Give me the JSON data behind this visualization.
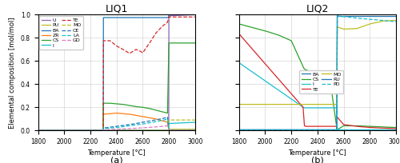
{
  "title1": "LIQ1",
  "title2": "LIQ2",
  "xlabel": "Temperature [°C]",
  "ylabel": "Elemental composition [mol/mol]",
  "xlim": [
    1800,
    3000
  ],
  "ylim": [
    0.0,
    1.0
  ],
  "label_a": "(a)",
  "label_b": "(b)",
  "liq1": {
    "U": {
      "color": "#9467bd",
      "ls": "-",
      "x": [
        1800,
        2799,
        2800,
        3000
      ],
      "y": [
        0.0,
        0.0,
        0.99,
        1.0
      ]
    },
    "PU": {
      "color": "#bcbd22",
      "ls": "-",
      "x": [
        1800,
        2799,
        2800,
        3000
      ],
      "y": [
        0.0,
        0.0,
        0.01,
        0.01
      ]
    },
    "BA": {
      "color": "#1f77b4",
      "ls": "-",
      "x": [
        1800,
        2299,
        2300,
        2799,
        2800,
        3000
      ],
      "y": [
        0.0,
        0.0,
        0.975,
        0.975,
        1.0,
        1.0
      ]
    },
    "ZR": {
      "color": "#ff7f0e",
      "ls": "-",
      "x": [
        1800,
        2299,
        2300,
        2400,
        2500,
        2600,
        2700,
        2790,
        2800,
        3000
      ],
      "y": [
        0.0,
        0.0,
        0.14,
        0.15,
        0.14,
        0.12,
        0.1,
        0.07,
        0.0,
        0.0
      ]
    },
    "CS": {
      "color": "#2ca02c",
      "ls": "-",
      "x": [
        1800,
        2299,
        2300,
        2350,
        2400,
        2450,
        2500,
        2550,
        2600,
        2650,
        2700,
        2750,
        2790,
        2800,
        3000
      ],
      "y": [
        0.0,
        0.0,
        0.235,
        0.235,
        0.23,
        0.225,
        0.215,
        0.205,
        0.2,
        0.19,
        0.175,
        0.16,
        0.15,
        0.755,
        0.755
      ]
    },
    "I": {
      "color": "#17becf",
      "ls": "-",
      "x": [
        1800,
        2799,
        2800,
        3000
      ],
      "y": [
        0.0,
        0.0,
        0.06,
        0.07
      ]
    },
    "TE": {
      "color": "#d62728",
      "ls": "--",
      "x": [
        1800,
        2299,
        2300,
        2350,
        2400,
        2450,
        2500,
        2550,
        2580,
        2600,
        2650,
        2700,
        2750,
        2790,
        2800,
        3000
      ],
      "y": [
        0.0,
        0.0,
        0.775,
        0.775,
        0.73,
        0.7,
        0.665,
        0.7,
        0.685,
        0.67,
        0.75,
        0.84,
        0.9,
        0.935,
        0.98,
        0.98
      ]
    },
    "MO": {
      "color": "#bcbd22",
      "ls": "--",
      "x": [
        1800,
        2799,
        2800,
        3000
      ],
      "y": [
        0.0,
        0.0,
        0.09,
        0.09
      ]
    },
    "CE": {
      "color": "#1f77b4",
      "ls": "--",
      "x": [
        1800,
        2299,
        2300,
        2400,
        2500,
        2600,
        2700,
        2780,
        2790,
        2800,
        3000
      ],
      "y": [
        0.0,
        0.0,
        0.02,
        0.035,
        0.05,
        0.07,
        0.09,
        0.11,
        0.115,
        0.0,
        0.0
      ]
    },
    "LA": {
      "color": "#17becf",
      "ls": "--",
      "x": [
        1800,
        2299,
        2300,
        2400,
        2500,
        2600,
        2700,
        2780,
        2790,
        2800,
        3000
      ],
      "y": [
        0.0,
        0.0,
        0.015,
        0.025,
        0.04,
        0.055,
        0.075,
        0.095,
        0.1,
        0.0,
        0.0
      ]
    },
    "GD": {
      "color": "#e377c2",
      "ls": "--",
      "x": [
        1800,
        2299,
        2300,
        2400,
        2500,
        2600,
        2700,
        2780,
        2790,
        2800,
        3000
      ],
      "y": [
        0.0,
        0.0,
        0.005,
        0.01,
        0.015,
        0.022,
        0.03,
        0.038,
        0.04,
        0.0,
        0.0
      ]
    }
  },
  "liq2": {
    "BA": {
      "color": "#1f77b4",
      "ls": "-",
      "x": [
        1800,
        2549,
        2550,
        3000
      ],
      "y": [
        0.005,
        0.005,
        1.0,
        1.0
      ]
    },
    "CS": {
      "color": "#2ca02c",
      "ls": "-",
      "x": [
        1800,
        2000,
        2100,
        2200,
        2290,
        2300,
        2400,
        2500,
        2549,
        2550,
        2600,
        2700,
        2800,
        2900,
        3000
      ],
      "y": [
        0.92,
        0.86,
        0.825,
        0.775,
        0.55,
        0.53,
        0.48,
        0.405,
        0.005,
        0.005,
        0.04,
        0.04,
        0.035,
        0.03,
        0.025
      ]
    },
    "I": {
      "color": "#17becf",
      "ls": "-",
      "x": [
        1800,
        2290,
        2300,
        2549,
        2550,
        3000
      ],
      "y": [
        0.585,
        0.2,
        0.195,
        0.195,
        0.005,
        0.005
      ]
    },
    "TE": {
      "color": "#d62728",
      "ls": "-",
      "x": [
        1800,
        2290,
        2300,
        2310,
        2549,
        2550,
        2600,
        2700,
        2800,
        2900,
        3000
      ],
      "y": [
        0.835,
        0.2,
        0.04,
        0.035,
        0.035,
        0.115,
        0.05,
        0.035,
        0.025,
        0.02,
        0.015
      ]
    },
    "MO": {
      "color": "#bcbd22",
      "ls": "-",
      "x": [
        1800,
        2549,
        2550,
        2600,
        2700,
        2800,
        2900,
        3000
      ],
      "y": [
        0.225,
        0.225,
        0.895,
        0.875,
        0.88,
        0.92,
        0.945,
        0.95
      ]
    },
    "RU": {
      "color": "#1f77b4",
      "ls": "-",
      "x": [
        1800,
        2549,
        2550,
        3000
      ],
      "y": [
        0.005,
        0.005,
        0.985,
        0.985
      ]
    },
    "PD": {
      "color": "#17becf",
      "ls": "--",
      "x": [
        1800,
        2549,
        2550,
        2700,
        2800,
        2900,
        3000
      ],
      "y": [
        0.005,
        0.005,
        0.99,
        0.97,
        0.96,
        0.95,
        0.94
      ]
    }
  },
  "liq1_legend_order": [
    "U",
    "PU",
    "BA",
    "ZR",
    "CS",
    "I",
    "TE",
    "MO",
    "CE",
    "LA",
    "GD"
  ],
  "liq2_legend_order": [
    "BA",
    "CS",
    "I",
    "TE",
    "MO",
    "RU",
    "PD"
  ]
}
